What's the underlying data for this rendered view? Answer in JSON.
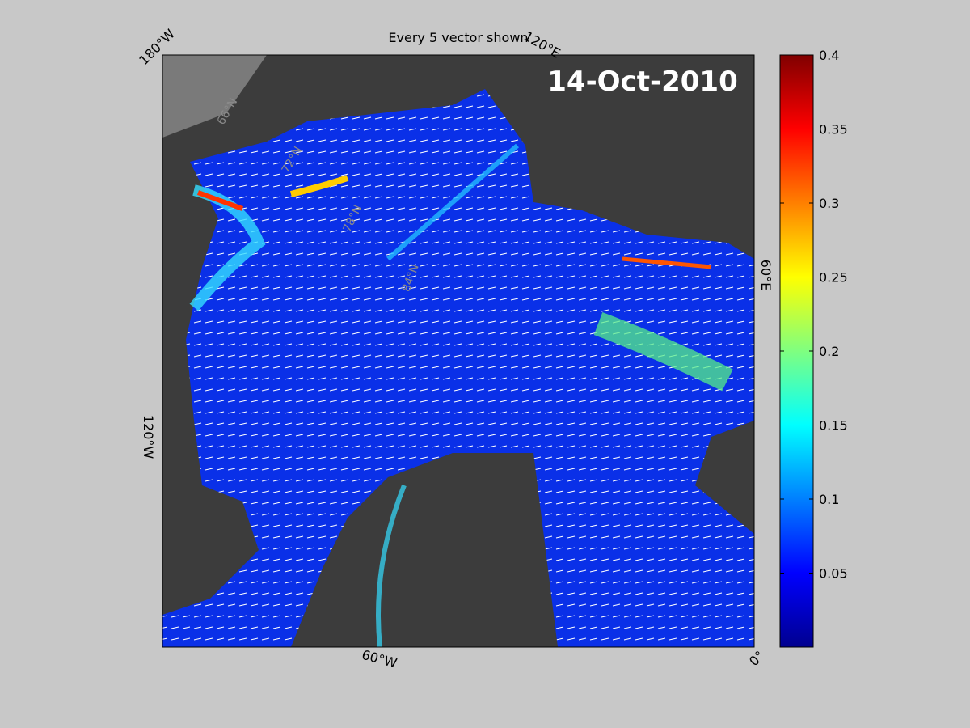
{
  "title": "Every 5 vector shown",
  "date": "14-Oct-2010",
  "longitude_labels": [
    "180°W",
    "120°E",
    "60°E",
    "0°",
    "60°W",
    "120°W"
  ],
  "latitude_labels": [
    "66°N",
    "72°N",
    "78°N",
    "84°N"
  ],
  "colorbar": {
    "colormap": "jet",
    "lim": [
      0,
      0.4
    ],
    "ticks": [
      0.05,
      0.1,
      0.15,
      0.2,
      0.25,
      0.3,
      0.35,
      0.4
    ]
  }
}
